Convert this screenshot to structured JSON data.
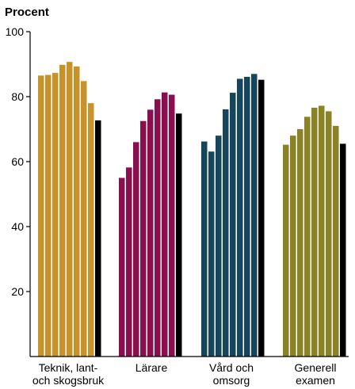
{
  "chart_data": {
    "type": "bar",
    "unit_label": "Procent",
    "ylim": [
      0,
      100
    ],
    "yticks": [
      20,
      40,
      60,
      80,
      100
    ],
    "grid": false,
    "groups": [
      {
        "label_lines": [
          "Teknik, lant-",
          "och skogsbruk"
        ],
        "color": "#C8922A",
        "values": [
          86.5,
          86.7,
          87.3,
          89.8,
          90.7,
          89.3,
          84.8,
          78.0
        ],
        "comparison": 72.7
      },
      {
        "label_lines": [
          "Lärare"
        ],
        "color": "#8B0F4E",
        "values": [
          55.0,
          58.2,
          66.0,
          72.5,
          76.0,
          79.2,
          81.3,
          80.6
        ],
        "comparison": 74.8
      },
      {
        "label_lines": [
          "Vård och",
          "omsorg"
        ],
        "color": "#15465E",
        "values": [
          66.2,
          63.1,
          68.0,
          76.1,
          81.2,
          85.5,
          86.1,
          87.0
        ],
        "comparison": 85.2
      },
      {
        "label_lines": [
          "Generell",
          "examen"
        ],
        "color": "#8A8224",
        "values": [
          65.2,
          68.0,
          70.0,
          73.8,
          76.6,
          77.2,
          75.5,
          71.0
        ],
        "comparison": 65.5
      }
    ],
    "comparison_color": "#000000"
  }
}
